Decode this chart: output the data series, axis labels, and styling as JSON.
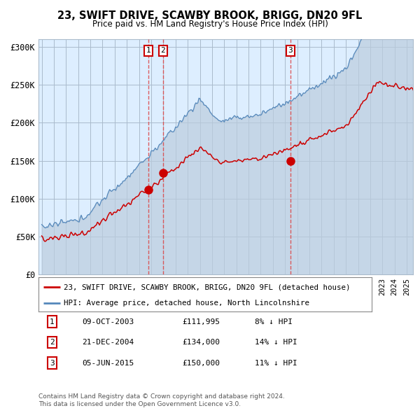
{
  "title": "23, SWIFT DRIVE, SCAWBY BROOK, BRIGG, DN20 9FL",
  "subtitle": "Price paid vs. HM Land Registry's House Price Index (HPI)",
  "ylabel_ticks": [
    0,
    50000,
    100000,
    150000,
    200000,
    250000,
    300000
  ],
  "ylabel_labels": [
    "£0",
    "£50K",
    "£100K",
    "£150K",
    "£200K",
    "£250K",
    "£300K"
  ],
  "xlim": [
    1994.75,
    2025.5
  ],
  "ylim": [
    0,
    310000
  ],
  "sale_dates": [
    2003.78,
    2004.97,
    2015.43
  ],
  "sale_prices": [
    111995,
    134000,
    150000
  ],
  "sale_labels": [
    "1",
    "2",
    "3"
  ],
  "sale_date_strs": [
    "09-OCT-2003",
    "21-DEC-2004",
    "05-JUN-2015"
  ],
  "sale_price_strs": [
    "£111,995",
    "£134,000",
    "£150,000"
  ],
  "sale_hpi_strs": [
    "8% ↓ HPI",
    "14% ↓ HPI",
    "11% ↓ HPI"
  ],
  "red_line_label": "23, SWIFT DRIVE, SCAWBY BROOK, BRIGG, DN20 9FL (detached house)",
  "blue_line_label": "HPI: Average price, detached house, North Lincolnshire",
  "footer1": "Contains HM Land Registry data © Crown copyright and database right 2024.",
  "footer2": "This data is licensed under the Open Government Licence v3.0.",
  "background_color": "#ffffff",
  "plot_bg_color": "#ddeeff",
  "grid_color": "#aabbcc",
  "red_color": "#cc0000",
  "blue_color": "#5588bb",
  "fill_color": "#bbccdd",
  "dashed_color": "#dd4444"
}
